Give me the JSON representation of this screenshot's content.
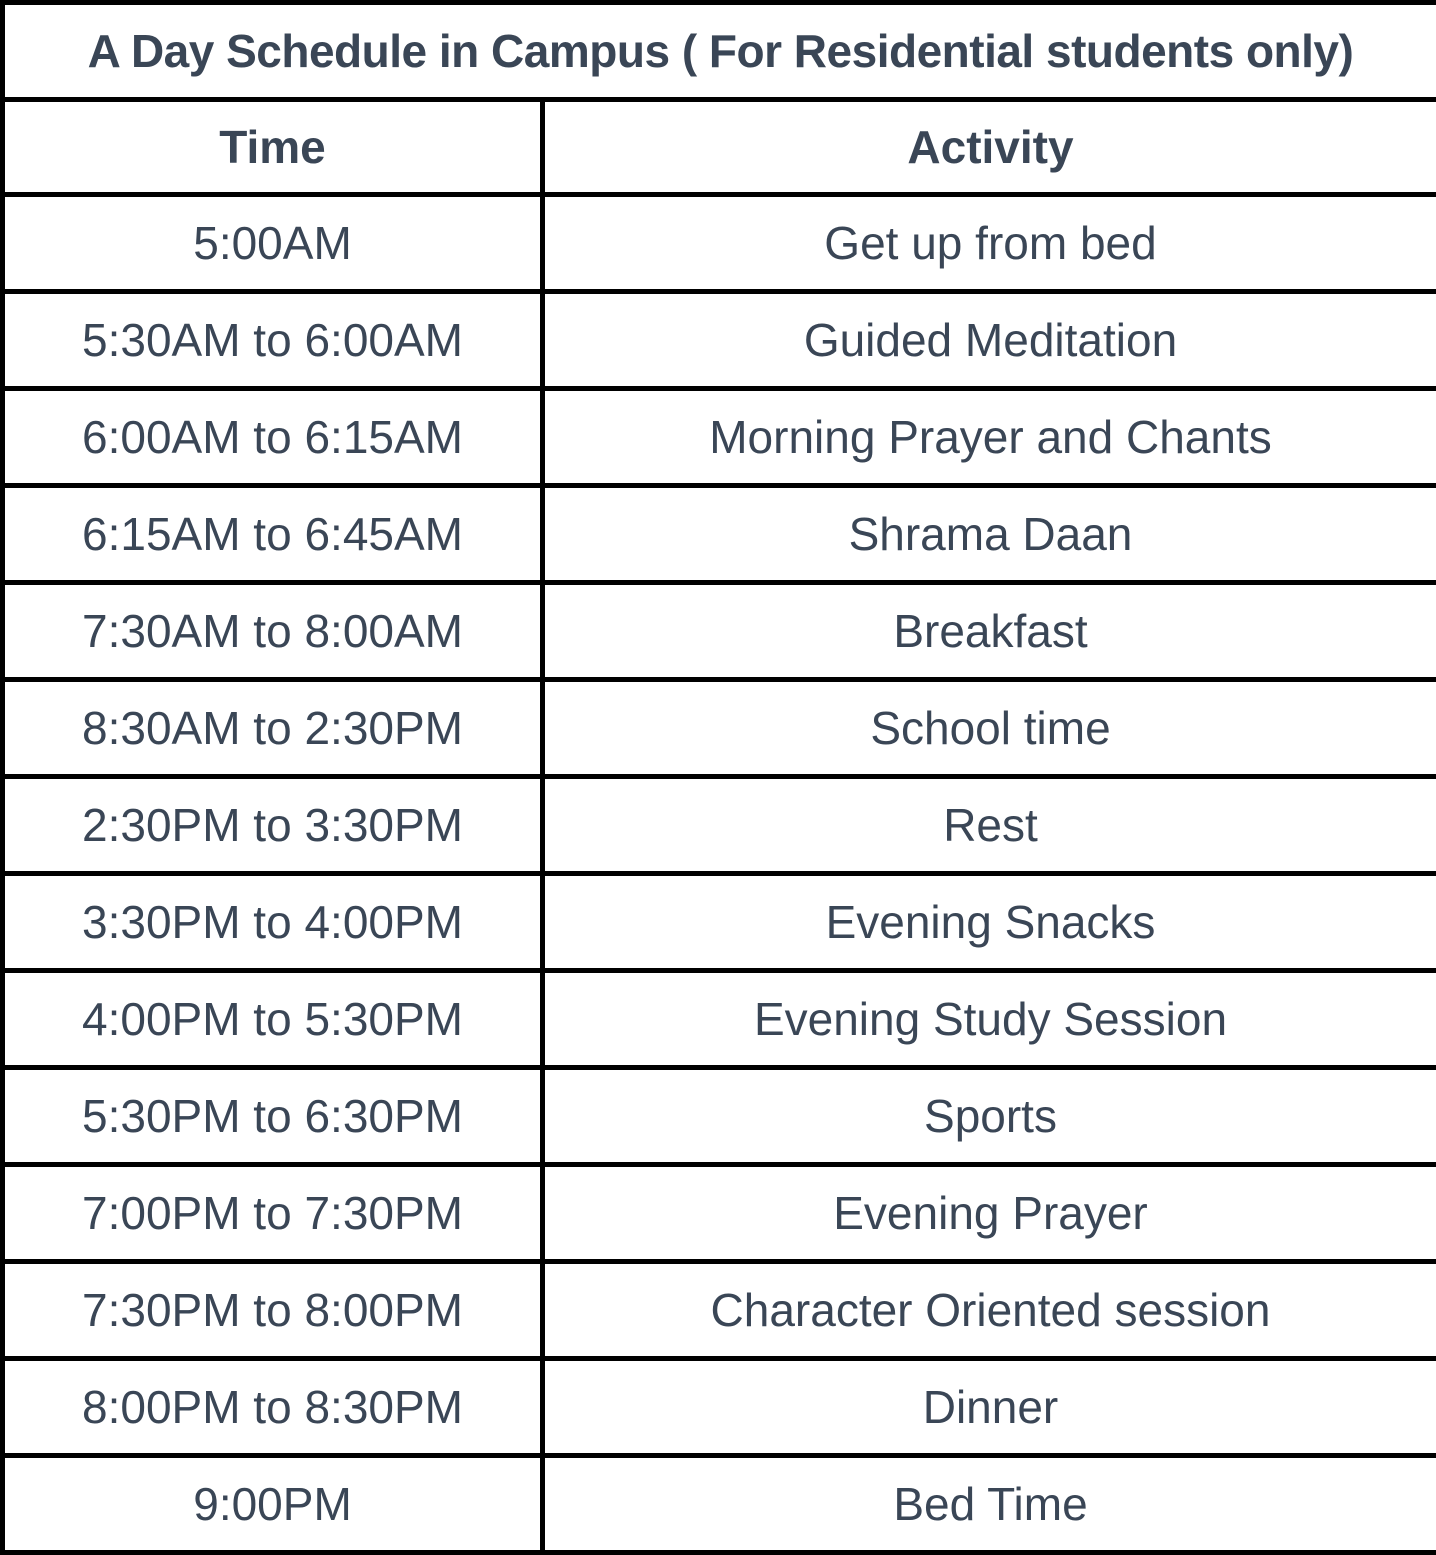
{
  "title": "A Day Schedule in Campus ( For Residential students only)",
  "headers": {
    "time": "Time",
    "activity": "Activity"
  },
  "rows": [
    {
      "time": "5:00AM",
      "activity": "Get up from bed"
    },
    {
      "time": "5:30AM to 6:00AM",
      "activity": "Guided Meditation"
    },
    {
      "time": "6:00AM to 6:15AM",
      "activity": "Morning Prayer and Chants"
    },
    {
      "time": "6:15AM to 6:45AM",
      "activity": "Shrama Daan"
    },
    {
      "time": "7:30AM to 8:00AM",
      "activity": "Breakfast"
    },
    {
      "time": "8:30AM to 2:30PM",
      "activity": "School time"
    },
    {
      "time": "2:30PM to 3:30PM",
      "activity": "Rest"
    },
    {
      "time": "3:30PM to 4:00PM",
      "activity": "Evening Snacks"
    },
    {
      "time": "4:00PM to 5:30PM",
      "activity": "Evening Study Session"
    },
    {
      "time": "5:30PM to 6:30PM",
      "activity": "Sports"
    },
    {
      "time": "7:00PM to 7:30PM",
      "activity": "Evening Prayer"
    },
    {
      "time": "7:30PM to 8:00PM",
      "activity": "Character Oriented session"
    },
    {
      "time": "8:00PM to 8:30PM",
      "activity": "Dinner"
    },
    {
      "time": "9:00PM",
      "activity": "Bed Time"
    }
  ],
  "colors": {
    "text": "#3a4656",
    "border": "#000000",
    "background": "#ffffff"
  }
}
